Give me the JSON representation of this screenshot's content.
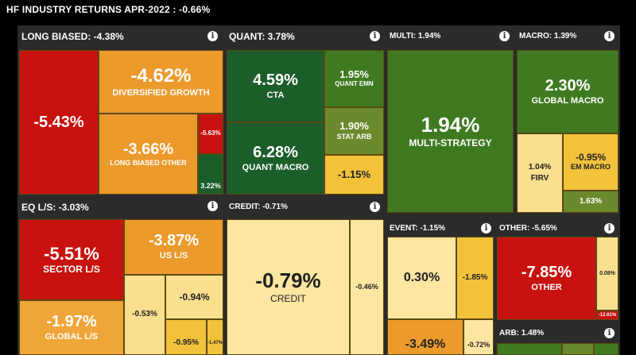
{
  "title": "HF INDUSTRY RETURNS APR-2022 : -0.66%",
  "icons": {
    "info": "info-icon"
  },
  "colors": {
    "dark_red": "#c8120f",
    "orange": "#ec9a2c",
    "light_orange": "#f0a538",
    "dark_green": "#1b5e2a",
    "green": "#3f7a21",
    "olive": "#6b8a2d",
    "yellow": "#f2c23b",
    "light_yellow": "#f9df8e",
    "pale_yellow": "#fce6a0"
  },
  "sections": [
    {
      "key": "long_biased",
      "header": "LONG BIASED: -4.38%"
    },
    {
      "key": "quant",
      "header": "QUANT: 3.78%"
    },
    {
      "key": "multi",
      "header": "MULTI: 1.94%"
    },
    {
      "key": "macro",
      "header": "MACRO: 1.39%"
    },
    {
      "key": "eq_ls",
      "header": "EQ L/S: -3.03%"
    },
    {
      "key": "credit",
      "header": "CREDIT: -0.71%"
    },
    {
      "key": "event",
      "header": "EVENT: -1.15%"
    },
    {
      "key": "other",
      "header": "OTHER: -5.65%"
    },
    {
      "key": "arb",
      "header": "ARB: 1.48%"
    }
  ],
  "chart_data": {
    "type": "treemap",
    "title": "HF INDUSTRY RETURNS APR-2022 : -0.66%",
    "groups": [
      {
        "name": "LONG BIASED",
        "value": -4.38,
        "children": [
          {
            "label": "",
            "value": -5.43
          },
          {
            "label": "DIVERSIFIED GROWTH",
            "value": -4.62
          },
          {
            "label": "LONG BIASED OTHER",
            "value": -3.66
          },
          {
            "label": "",
            "value": -5.63
          },
          {
            "label": "",
            "value": 3.22
          }
        ]
      },
      {
        "name": "QUANT",
        "value": 3.78,
        "children": [
          {
            "label": "CTA",
            "value": 4.59
          },
          {
            "label": "QUANT MACRO",
            "value": 6.28
          },
          {
            "label": "QUANT EMN",
            "value": 1.95
          },
          {
            "label": "STAT ARB",
            "value": 1.9
          },
          {
            "label": "",
            "value": -1.15
          }
        ]
      },
      {
        "name": "MULTI",
        "value": 1.94,
        "children": [
          {
            "label": "MULTI-STRATEGY",
            "value": 1.94
          }
        ]
      },
      {
        "name": "MACRO",
        "value": 1.39,
        "children": [
          {
            "label": "GLOBAL MACRO",
            "value": 2.3
          },
          {
            "label": "FIRV",
            "value": 1.04
          },
          {
            "label": "EM MACRO",
            "value": -0.95
          },
          {
            "label": "",
            "value": 1.63
          }
        ]
      },
      {
        "name": "EQ L/S",
        "value": -3.03,
        "children": [
          {
            "label": "SECTOR L/S",
            "value": -5.51
          },
          {
            "label": "US L/S",
            "value": -3.87
          },
          {
            "label": "GLOBAL L/S",
            "value": -1.97
          },
          {
            "label": "",
            "value": -0.53
          },
          {
            "label": "",
            "value": -0.94
          },
          {
            "label": "",
            "value": -0.95
          },
          {
            "label": "",
            "value": -1.47
          }
        ]
      },
      {
        "name": "CREDIT",
        "value": -0.71,
        "children": [
          {
            "label": "CREDIT",
            "value": -0.79
          },
          {
            "label": "",
            "value": -0.46
          }
        ]
      },
      {
        "name": "EVENT",
        "value": -1.15,
        "children": [
          {
            "label": "",
            "value": 0.3
          },
          {
            "label": "",
            "value": -1.85
          },
          {
            "label": "",
            "value": -3.49
          },
          {
            "label": "",
            "value": -0.72
          }
        ]
      },
      {
        "name": "OTHER",
        "value": -5.65,
        "children": [
          {
            "label": "OTHER",
            "value": -7.85
          },
          {
            "label": "",
            "value": 0.08
          },
          {
            "label": "",
            "value": -12.61
          }
        ]
      },
      {
        "name": "ARB",
        "value": 1.48,
        "children": []
      }
    ]
  },
  "tiles": {
    "lb_main": {
      "value": "-5.43%",
      "label": ""
    },
    "lb_div": {
      "value": "-4.62%",
      "label": "DIVERSIFIED GROWTH"
    },
    "lb_other": {
      "value": "-3.66%",
      "label": "LONG BIASED OTHER"
    },
    "lb_s1": {
      "value": "-5.63%",
      "label": ""
    },
    "lb_s2": {
      "value": "3.22%",
      "label": ""
    },
    "q_cta": {
      "value": "4.59%",
      "label": "CTA"
    },
    "q_macro": {
      "value": "6.28%",
      "label": "QUANT MACRO"
    },
    "q_emn": {
      "value": "1.95%",
      "label": "QUANT EMN"
    },
    "q_stat": {
      "value": "1.90%",
      "label": "STAT ARB"
    },
    "q_s": {
      "value": "-1.15%",
      "label": ""
    },
    "m_ms": {
      "value": "1.94%",
      "label": "MULTI-STRATEGY"
    },
    "mac_gm": {
      "value": "2.30%",
      "label": "GLOBAL MACRO"
    },
    "mac_firv": {
      "value": "1.04%",
      "label": "FIRV"
    },
    "mac_em": {
      "value": "-0.95%",
      "label": "EM MACRO"
    },
    "mac_s": {
      "value": "1.63%",
      "label": ""
    },
    "eq_sector": {
      "value": "-5.51%",
      "label": "SECTOR L/S"
    },
    "eq_us": {
      "value": "-3.87%",
      "label": "US L/S"
    },
    "eq_global": {
      "value": "-1.97%",
      "label": "GLOBAL L/S"
    },
    "eq_a": {
      "value": "-0.53%",
      "label": ""
    },
    "eq_b": {
      "value": "-0.94%",
      "label": ""
    },
    "eq_c": {
      "value": "-0.95%",
      "label": ""
    },
    "eq_d": {
      "value": "-1.47%",
      "label": ""
    },
    "cr_main": {
      "value": "-0.79%",
      "label": "CREDIT"
    },
    "cr_s": {
      "value": "-0.46%",
      "label": ""
    },
    "ev_a": {
      "value": "0.30%",
      "label": ""
    },
    "ev_b": {
      "value": "-1.85%",
      "label": ""
    },
    "ev_c": {
      "value": "-3.49%",
      "label": ""
    },
    "ev_d": {
      "value": "-0.72%",
      "label": ""
    },
    "ot_main": {
      "value": "-7.85%",
      "label": "OTHER"
    },
    "ot_s1": {
      "value": "0.08%",
      "label": ""
    },
    "ot_s2": {
      "value": "-12.61%",
      "label": ""
    }
  }
}
